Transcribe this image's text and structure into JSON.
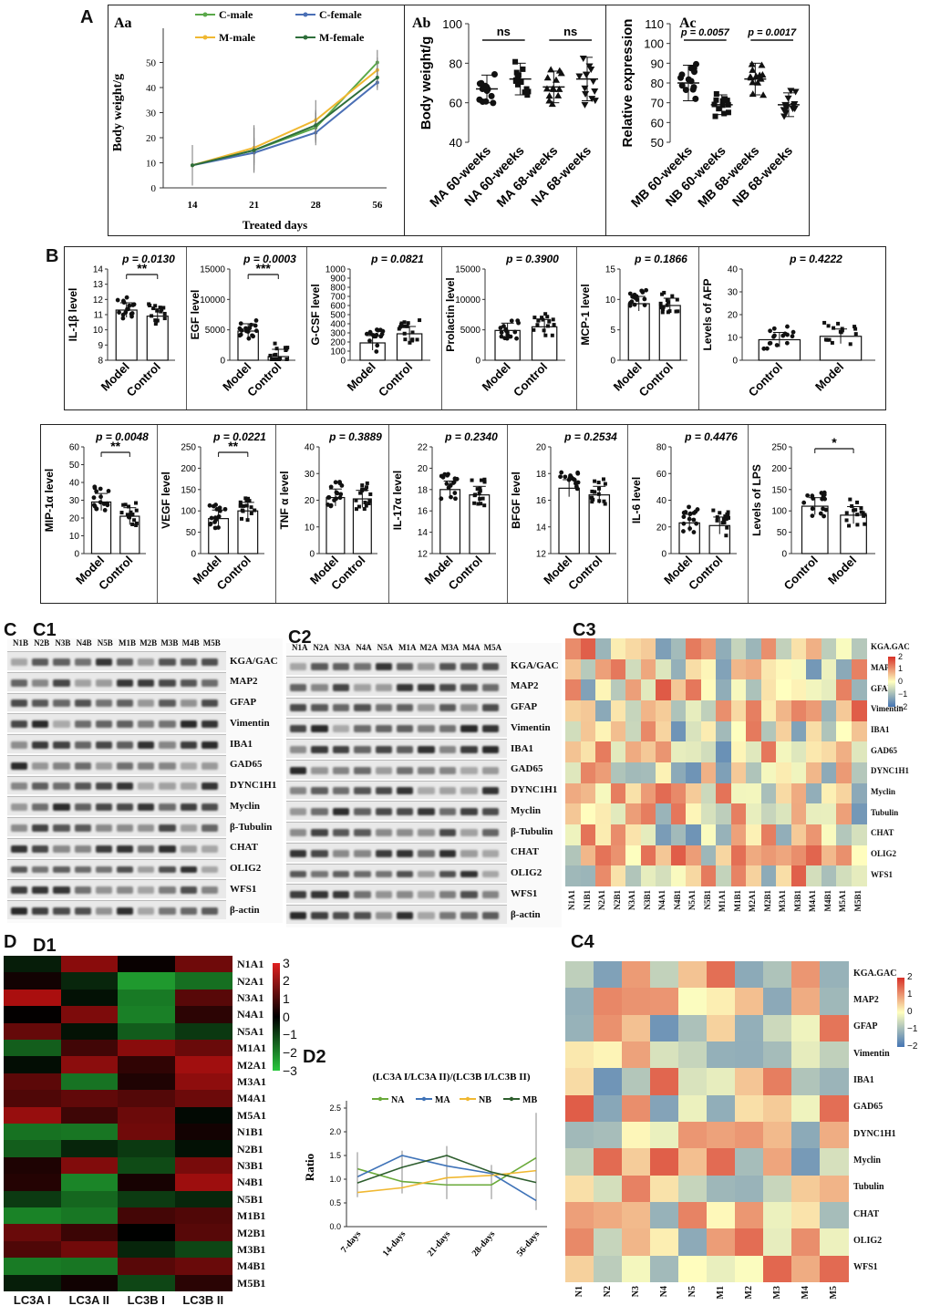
{
  "panel_labels": {
    "A": "A",
    "Aa": "Aa",
    "Ab": "Ab",
    "Ac": "Ac",
    "B": "B",
    "C": "C",
    "C1": "C1",
    "C2": "C2",
    "C3": "C3",
    "C4": "C4",
    "D": "D",
    "D1": "D1",
    "D2": "D2"
  },
  "chart_data": [
    {
      "id": "Aa",
      "type": "line",
      "xlabel": "Treated days",
      "ylabel": "Body weight/g",
      "categories": [
        "14",
        "21",
        "28",
        "56"
      ],
      "ylim": [
        0,
        60
      ],
      "yticks": [
        0,
        10,
        20,
        30,
        40,
        50
      ],
      "series": [
        {
          "name": "C-male",
          "color": "#5aa84a",
          "values": [
            9,
            15,
            24,
            50
          ],
          "err": [
            8,
            5,
            6,
            5
          ]
        },
        {
          "name": "C-female",
          "color": "#4a6fb5",
          "values": [
            9,
            14,
            22,
            42
          ],
          "err": [
            8,
            5,
            5,
            3
          ]
        },
        {
          "name": "M-male",
          "color": "#f0b832",
          "values": [
            9,
            16,
            27,
            47
          ],
          "err": [
            8,
            9,
            8,
            5
          ]
        },
        {
          "name": "M-female",
          "color": "#2e6e3a",
          "values": [
            9,
            15,
            25,
            44
          ],
          "err": [
            8,
            9,
            6,
            4
          ]
        }
      ]
    },
    {
      "id": "Ab",
      "type": "scatter",
      "ylabel": "Body weight/g",
      "ylim": [
        40,
        100
      ],
      "yticks": [
        40,
        60,
        80,
        100
      ],
      "categories": [
        "MA 60-weeks",
        "NA 60-weeks",
        "MA 68-weeks",
        "NA 68-weeks"
      ],
      "means": [
        67,
        72,
        68,
        72
      ],
      "sd": [
        7,
        8,
        8,
        11
      ],
      "sig": [
        "ns",
        "ns"
      ]
    },
    {
      "id": "Ac",
      "type": "scatter",
      "ylabel": "Relative expression",
      "ylim": [
        50,
        110
      ],
      "yticks": [
        50,
        60,
        70,
        80,
        90,
        100,
        110
      ],
      "categories": [
        "MB 60-weeks",
        "NB 60-weeks",
        "MB 68-weeks",
        "NB 68-weeks"
      ],
      "means": [
        80,
        69,
        82,
        69
      ],
      "sd": [
        9,
        5,
        8,
        6
      ],
      "sig": [
        "p = 0.0057",
        "p = 0.0017"
      ]
    },
    {
      "id": "B-IL1b",
      "type": "bar",
      "ylabel": "IL-1β level",
      "categories": [
        "Model",
        "Control"
      ],
      "values": [
        11.3,
        10.9
      ],
      "ylim": [
        8,
        14
      ],
      "yticks": [
        8,
        9,
        10,
        11,
        12,
        13,
        14
      ],
      "p": "p = 0.0130",
      "stars": "**"
    },
    {
      "id": "B-EGF",
      "type": "bar",
      "ylabel": "EGF level",
      "categories": [
        "Model",
        "Control"
      ],
      "values": [
        4800,
        600
      ],
      "ylim": [
        0,
        15000
      ],
      "yticks": [
        0,
        5000,
        10000,
        15000
      ],
      "p": "p = 0.0003",
      "stars": "***"
    },
    {
      "id": "B-GCSF",
      "type": "bar",
      "ylabel": "G-CSF level",
      "categories": [
        "Model",
        "Control"
      ],
      "values": [
        190,
        290
      ],
      "ylim": [
        0,
        1000
      ],
      "yticks": [
        0,
        100,
        200,
        300,
        400,
        500,
        600,
        700,
        800,
        900,
        1000
      ],
      "p": "p = 0.0821",
      "stars": ""
    },
    {
      "id": "B-PRL",
      "type": "bar",
      "ylabel": "Prolactin level",
      "categories": [
        "Model",
        "Control"
      ],
      "values": [
        4900,
        5500
      ],
      "ylim": [
        0,
        15000
      ],
      "yticks": [
        0,
        5000,
        10000,
        15000
      ],
      "p": "p = 0.3900",
      "stars": ""
    },
    {
      "id": "B-MCP1",
      "type": "bar",
      "ylabel": "MCP-1 level",
      "categories": [
        "Model",
        "Control"
      ],
      "values": [
        9.3,
        9.0
      ],
      "ylim": [
        0,
        15
      ],
      "yticks": [
        0,
        5,
        10,
        15
      ],
      "p": "p = 0.1866",
      "stars": ""
    },
    {
      "id": "B-AFP",
      "type": "bar",
      "ylabel": "Levels of AFP",
      "categories": [
        "Control",
        "Model"
      ],
      "values": [
        9,
        10.5
      ],
      "ylim": [
        0,
        40
      ],
      "yticks": [
        0,
        10,
        20,
        30,
        40
      ],
      "p": "p = 0.4222",
      "stars": ""
    },
    {
      "id": "B-MIP",
      "type": "bar",
      "ylabel": "MIP-1α level",
      "categories": [
        "Model",
        "Control"
      ],
      "values": [
        29,
        21
      ],
      "ylim": [
        0,
        60
      ],
      "yticks": [
        0,
        10,
        20,
        30,
        40,
        50,
        60
      ],
      "p": "p = 0.0048",
      "stars": "**"
    },
    {
      "id": "B-VEGF",
      "type": "bar",
      "ylabel": "VEGF level",
      "categories": [
        "Model",
        "Control"
      ],
      "values": [
        82,
        100
      ],
      "ylim": [
        0,
        250
      ],
      "yticks": [
        0,
        50,
        100,
        150,
        200,
        250
      ],
      "p": "p = 0.0221",
      "stars": "**"
    },
    {
      "id": "B-TNF",
      "type": "bar",
      "ylabel": "TNF α level",
      "categories": [
        "Model",
        "Control"
      ],
      "values": [
        21,
        20.5
      ],
      "ylim": [
        0,
        40
      ],
      "yticks": [
        0,
        10,
        20,
        30,
        40
      ],
      "p": "p = 0.3889",
      "stars": ""
    },
    {
      "id": "B-IL17",
      "type": "bar",
      "ylabel": "IL-17α level",
      "categories": [
        "Model",
        "Control"
      ],
      "values": [
        18,
        17.5
      ],
      "ylim": [
        12,
        22
      ],
      "yticks": [
        12,
        14,
        16,
        18,
        20,
        22
      ],
      "p": "p = 0.2340",
      "stars": ""
    },
    {
      "id": "B-BFGF",
      "type": "bar",
      "ylabel": "BFGF level",
      "categories": [
        "Model",
        "Control"
      ],
      "values": [
        16.9,
        16.4
      ],
      "ylim": [
        12,
        20
      ],
      "yticks": [
        12,
        14,
        16,
        18,
        20
      ],
      "p": "p = 0.2534",
      "stars": ""
    },
    {
      "id": "B-IL6",
      "type": "bar",
      "ylabel": "IL-6 level",
      "categories": [
        "Model",
        "Control"
      ],
      "values": [
        23,
        21
      ],
      "ylim": [
        0,
        80
      ],
      "yticks": [
        0,
        20,
        40,
        60,
        80
      ],
      "p": "p = 0.4476",
      "stars": ""
    },
    {
      "id": "B-LPS",
      "type": "bar",
      "ylabel": "Levels of LPS",
      "categories": [
        "Control",
        "Model"
      ],
      "values": [
        111,
        90
      ],
      "ylim": [
        0,
        250
      ],
      "yticks": [
        0,
        50,
        100,
        150,
        200,
        250
      ],
      "p": "",
      "stars": "*"
    },
    {
      "id": "D2",
      "type": "line",
      "title": "(LC3A I/LC3A II)/(LC3B I/LC3B II)",
      "ylabel": "Ratio",
      "categories": [
        "7-days",
        "14-days",
        "21-days",
        "28-days",
        "56-days"
      ],
      "ylim": [
        0,
        2.5
      ],
      "yticks": [
        0.0,
        0.5,
        1.0,
        1.5,
        2.0,
        2.5
      ],
      "series": [
        {
          "name": "NA",
          "color": "#6aaa3a",
          "values": [
            1.22,
            0.95,
            0.88,
            0.88,
            1.45
          ],
          "err": [
            0.35,
            0.2,
            0.3,
            0.3,
            0.95
          ]
        },
        {
          "name": "MA",
          "color": "#3f73b8",
          "values": [
            1.05,
            1.5,
            1.28,
            1.12,
            0.55
          ],
          "err": [
            0.2,
            0.1,
            0.1,
            0.15,
            0.2
          ]
        },
        {
          "name": "NB",
          "color": "#f0b832",
          "values": [
            0.72,
            0.82,
            1.03,
            1.08,
            1.18
          ],
          "err": [
            0.1,
            0.12,
            0.15,
            0.1,
            0.2
          ]
        },
        {
          "name": "MB",
          "color": "#2e5e2e",
          "values": [
            0.92,
            1.25,
            1.5,
            1.15,
            0.93
          ],
          "err": [
            0.15,
            0.2,
            0.2,
            0.15,
            0.25
          ]
        }
      ]
    }
  ],
  "blots": {
    "C1": {
      "lanes": [
        "N1B",
        "N2B",
        "N3B",
        "N4B",
        "N5B",
        "M1B",
        "M2B",
        "M3B",
        "M4B",
        "M5B"
      ],
      "proteins": [
        "KGA/GAC",
        "MAP2",
        "GFAP",
        "Vimentin",
        "IBA1",
        "GAD65",
        "DYNC1H1",
        "Myclin",
        "β-Tubulin",
        "CHAT",
        "OLIG2",
        "WFS1",
        "β-actin"
      ]
    },
    "C2": {
      "lanes": [
        "N1A",
        "N2A",
        "N3A",
        "N4A",
        "N5A",
        "M1A",
        "M2A",
        "M3A",
        "M4A",
        "M5A"
      ],
      "proteins": [
        "KGA/GAC",
        "MAP2",
        "GFAP",
        "Vimentin",
        "IBA1",
        "GAD65",
        "DYNC1H1",
        "Myclin",
        "β-Tubulin",
        "CHAT",
        "OLIG2",
        "WFS1",
        "β-actin"
      ]
    }
  },
  "heatmaps": {
    "C3": {
      "rows": [
        "KGA.GAC",
        "MAP2",
        "GFAP",
        "Vimentin",
        "IBA1",
        "GAD65",
        "DYNC1H1",
        "Myclin",
        "Tubulin",
        "CHAT",
        "OLIG2",
        "WFS1"
      ],
      "cols": [
        "N1A1",
        "N1B1",
        "N2A1",
        "N2B1",
        "N3A1",
        "N3B1",
        "N4A1",
        "N4B1",
        "N5A1",
        "N5B1",
        "M1A1",
        "M1B1",
        "M2A1",
        "M2B1",
        "M3A1",
        "M3B1",
        "M4A1",
        "M4B1",
        "M5A1",
        "M5B1"
      ],
      "scale": [
        "2",
        "1",
        "0",
        "−1",
        "−2"
      ]
    },
    "C4": {
      "rows": [
        "KGA.GAC",
        "MAP2",
        "GFAP",
        "Vimentin",
        "IBA1",
        "GAD65",
        "DYNC1H1",
        "Myclin",
        "Tubulin",
        "CHAT",
        "OLIG2",
        "WFS1"
      ],
      "cols": [
        "N1",
        "N2",
        "N3",
        "N4",
        "N5",
        "M1",
        "M2",
        "M3",
        "M4",
        "M5"
      ],
      "scale": [
        "2",
        "1",
        "0",
        "−1",
        "−2"
      ]
    },
    "D1": {
      "rows": [
        "N1A1",
        "N2A1",
        "N3A1",
        "N4A1",
        "N5A1",
        "M1A1",
        "M2A1",
        "M3A1",
        "M4A1",
        "M5A1",
        "N1B1",
        "N2B1",
        "N3B1",
        "N4B1",
        "N5B1",
        "M1B1",
        "M2B1",
        "M3B1",
        "M4B1",
        "M5B1"
      ],
      "cols": [
        "LC3A I",
        "LC3A II",
        "LC3B I",
        "LC3B II"
      ],
      "scale": [
        "3",
        "2",
        "1",
        "0",
        "−1",
        "−2",
        "−3"
      ]
    }
  },
  "colors": {
    "red": "#d73027",
    "blue": "#4575b4",
    "green": "#1a9850",
    "hm_mid": "#ffffbf"
  }
}
